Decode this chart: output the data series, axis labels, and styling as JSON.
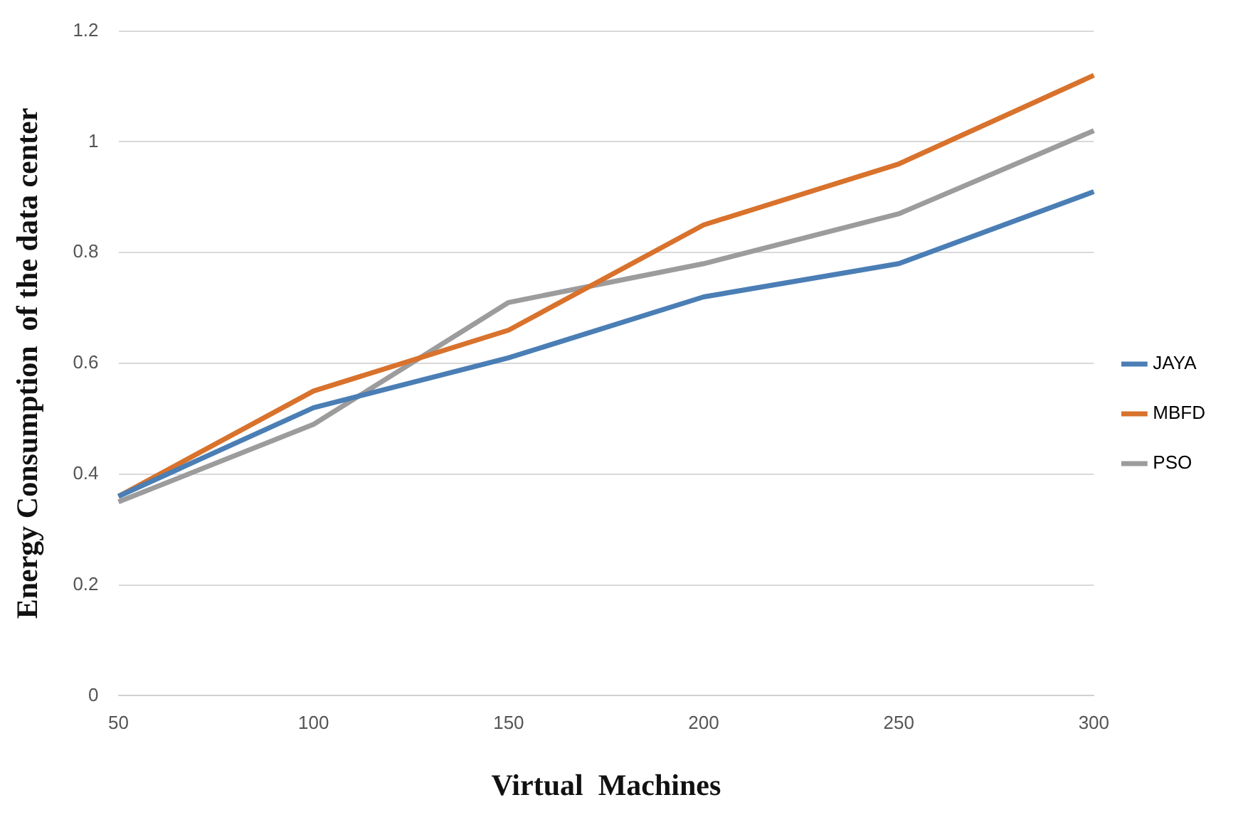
{
  "chart_data": {
    "type": "line",
    "xlabel": "Virtual  Machines",
    "ylabel": "Energy Consumption  of the data center",
    "categories": [
      "50",
      "100",
      "150",
      "200",
      "250",
      "300"
    ],
    "series": [
      {
        "name": "JAYA",
        "color": "#4a7eb5",
        "values": [
          0.36,
          0.52,
          0.61,
          0.72,
          0.78,
          0.91
        ]
      },
      {
        "name": "MBFD",
        "color": "#d8722c",
        "values": [
          0.36,
          0.55,
          0.66,
          0.85,
          0.96,
          1.12
        ]
      },
      {
        "name": "PSO",
        "color": "#9c9c9c",
        "values": [
          0.35,
          0.49,
          0.71,
          0.78,
          0.87,
          1.02
        ]
      }
    ],
    "ylim": [
      0,
      1.2
    ],
    "yticks": [
      0,
      0.2,
      0.4,
      0.6,
      0.8,
      1,
      1.2
    ],
    "grid": "y",
    "legend": "right",
    "marker": "none",
    "line_style": "solid"
  }
}
